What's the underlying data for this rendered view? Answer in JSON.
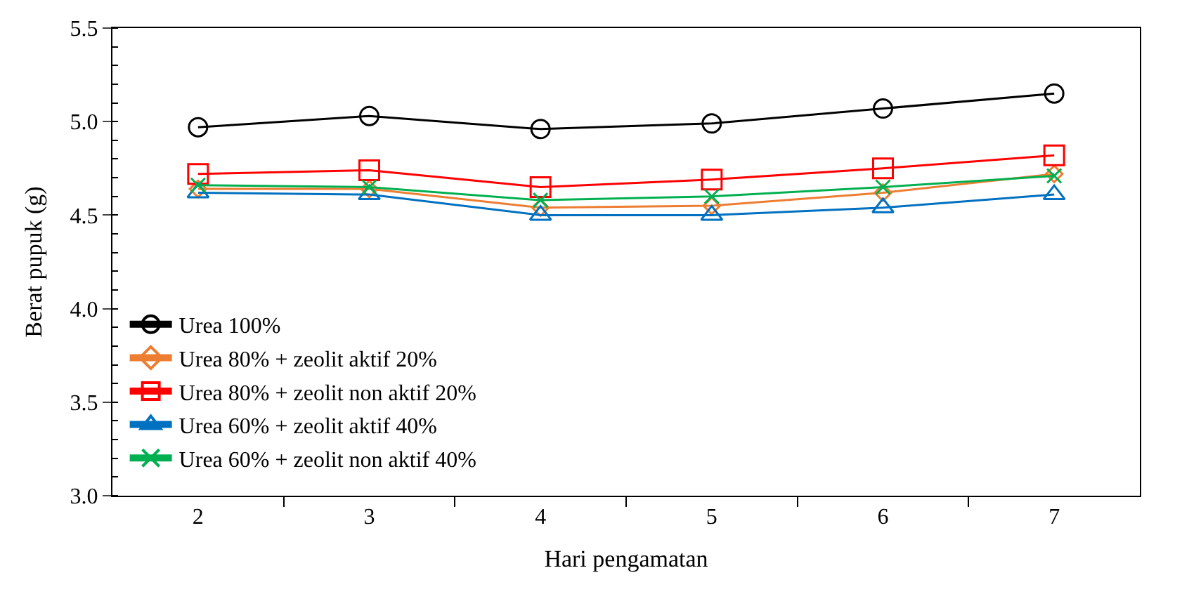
{
  "chart_data": {
    "type": "line",
    "xlabel": "Hari pengamatan",
    "ylabel": "Berat pupuk (g)",
    "categories": [
      "2",
      "3",
      "4",
      "5",
      "6",
      "7"
    ],
    "ylim": [
      3.0,
      5.5
    ],
    "yticks": [
      {
        "value": 3.0,
        "label": "3.0"
      },
      3.5,
      {
        "value": 4.0,
        "label": "4.0"
      },
      4.5,
      {
        "value": 5.0,
        "label": "5.0"
      },
      5.5
    ],
    "legend": "bottom left",
    "line_style": "solid",
    "series": [
      {
        "name": "Urea 100%",
        "color": "#000000",
        "marker": "circle",
        "values": [
          4.97,
          5.03,
          4.96,
          4.99,
          5.07,
          5.15
        ]
      },
      {
        "name": "Urea 80% + zeolit aktif 20%",
        "color": "#ed7d31",
        "marker": "diamond",
        "values": [
          4.64,
          4.64,
          4.54,
          4.55,
          4.62,
          4.72
        ]
      },
      {
        "name": "Urea 80% + zeolit non aktif 20%",
        "color": "#ff0000",
        "marker": "square",
        "values": [
          4.72,
          4.74,
          4.65,
          4.69,
          4.75,
          4.82
        ]
      },
      {
        "name": "Urea 60% + zeolit aktif 40%",
        "color": "#0070c0",
        "marker": "triangle",
        "values": [
          4.62,
          4.61,
          4.5,
          4.5,
          4.54,
          4.61
        ]
      },
      {
        "name": "Urea 60% + zeolit non aktif 40%",
        "color": "#00b050",
        "marker": "cross",
        "values": [
          4.66,
          4.65,
          4.58,
          4.6,
          4.65,
          4.71
        ]
      }
    ]
  }
}
